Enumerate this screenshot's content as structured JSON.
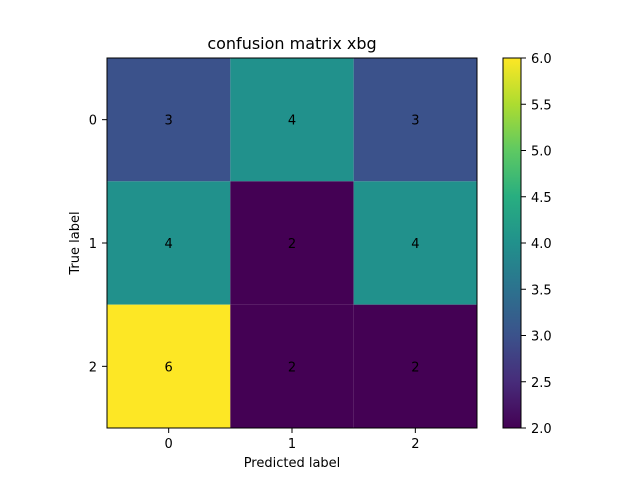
{
  "colors": {
    "background": "#ffffff",
    "axis": "#000000",
    "text_light": "#fde725",
    "text_dark": "#440154"
  },
  "chart_data": {
    "type": "heatmap",
    "title": "confusion matrix xbg",
    "xlabel": "Predicted label",
    "ylabel": "True label",
    "x_categories": [
      "0",
      "1",
      "2"
    ],
    "y_categories": [
      "0",
      "1",
      "2"
    ],
    "values": [
      [
        3,
        4,
        3
      ],
      [
        4,
        2,
        4
      ],
      [
        6,
        2,
        2
      ]
    ],
    "colormap": "viridis",
    "colorbar": {
      "range": [
        2.0,
        6.0
      ],
      "ticks": [
        2.0,
        2.5,
        3.0,
        3.5,
        4.0,
        4.5,
        5.0,
        5.5,
        6.0
      ],
      "tick_labels": [
        "2.0",
        "2.5",
        "3.0",
        "3.5",
        "4.0",
        "4.5",
        "5.0",
        "5.5",
        "6.0"
      ]
    }
  }
}
